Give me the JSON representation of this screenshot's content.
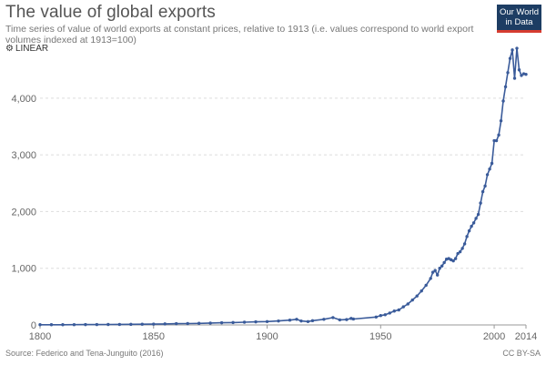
{
  "header": {
    "title": "The value of global exports",
    "subtitle": "Time series of value of world exports at constant prices, relative to 1913 (i.e. values correspond to world export volumes indexed at 1913=100)",
    "logo_line1": "Our World",
    "logo_line2": "in Data",
    "scale_toggle_label": "LINEAR"
  },
  "footer": {
    "source": "Source: Federico and Tena-Junguito (2016)",
    "license": "CC BY-SA"
  },
  "colors": {
    "series": "#3a5b9a",
    "grid": "#dddddd",
    "logo_bg": "#1d3d63",
    "logo_accent": "#d63c30"
  },
  "chart_data": {
    "type": "line",
    "title": "The value of global exports",
    "xlim": [
      1800,
      2014
    ],
    "ylim": [
      0,
      4800
    ],
    "x_ticks": [
      "1800",
      "1850",
      "1900",
      "1950",
      "2000",
      "2014"
    ],
    "y_ticks": [
      "0",
      "1,000",
      "2,000",
      "3,000",
      "4,000"
    ],
    "y_tick_values": [
      0,
      1000,
      2000,
      3000,
      4000
    ],
    "x_tick_values": [
      1800,
      1850,
      1900,
      1950,
      2000,
      2014
    ],
    "grid": "horizontal",
    "series": [
      {
        "points": [
          [
            1800,
            4
          ],
          [
            1805,
            4
          ],
          [
            1810,
            4
          ],
          [
            1815,
            5
          ],
          [
            1820,
            6
          ],
          [
            1825,
            7
          ],
          [
            1830,
            8
          ],
          [
            1835,
            9
          ],
          [
            1840,
            11
          ],
          [
            1845,
            13
          ],
          [
            1850,
            15
          ],
          [
            1855,
            18
          ],
          [
            1860,
            22
          ],
          [
            1865,
            24
          ],
          [
            1870,
            28
          ],
          [
            1875,
            33
          ],
          [
            1880,
            38
          ],
          [
            1885,
            42
          ],
          [
            1890,
            48
          ],
          [
            1895,
            54
          ],
          [
            1900,
            60
          ],
          [
            1905,
            70
          ],
          [
            1910,
            85
          ],
          [
            1913,
            100
          ],
          [
            1915,
            70
          ],
          [
            1918,
            60
          ],
          [
            1920,
            75
          ],
          [
            1925,
            100
          ],
          [
            1929,
            130
          ],
          [
            1932,
            90
          ],
          [
            1935,
            95
          ],
          [
            1937,
            115
          ],
          [
            1938,
            105
          ],
          [
            1948,
            140
          ],
          [
            1950,
            165
          ],
          [
            1952,
            180
          ],
          [
            1954,
            210
          ],
          [
            1956,
            245
          ],
          [
            1958,
            265
          ],
          [
            1960,
            320
          ],
          [
            1962,
            370
          ],
          [
            1964,
            440
          ],
          [
            1966,
            510
          ],
          [
            1968,
            600
          ],
          [
            1970,
            700
          ],
          [
            1972,
            820
          ],
          [
            1973,
            930
          ],
          [
            1974,
            960
          ],
          [
            1975,
            880
          ],
          [
            1976,
            1000
          ],
          [
            1977,
            1040
          ],
          [
            1978,
            1100
          ],
          [
            1979,
            1160
          ],
          [
            1980,
            1170
          ],
          [
            1981,
            1150
          ],
          [
            1982,
            1130
          ],
          [
            1983,
            1170
          ],
          [
            1984,
            1260
          ],
          [
            1985,
            1290
          ],
          [
            1986,
            1350
          ],
          [
            1987,
            1430
          ],
          [
            1988,
            1560
          ],
          [
            1989,
            1660
          ],
          [
            1990,
            1740
          ],
          [
            1991,
            1800
          ],
          [
            1992,
            1880
          ],
          [
            1993,
            1950
          ],
          [
            1994,
            2150
          ],
          [
            1995,
            2350
          ],
          [
            1996,
            2450
          ],
          [
            1997,
            2650
          ],
          [
            1998,
            2750
          ],
          [
            1999,
            2850
          ],
          [
            2000,
            3250
          ],
          [
            2001,
            3250
          ],
          [
            2002,
            3350
          ],
          [
            2003,
            3600
          ],
          [
            2004,
            3950
          ],
          [
            2005,
            4200
          ],
          [
            2006,
            4450
          ],
          [
            2007,
            4700
          ],
          [
            2008,
            4850
          ],
          [
            2009,
            4350
          ],
          [
            2010,
            4880
          ],
          [
            2011,
            4500
          ],
          [
            2012,
            4400
          ],
          [
            2013,
            4430
          ],
          [
            2014,
            4420
          ]
        ]
      }
    ]
  }
}
